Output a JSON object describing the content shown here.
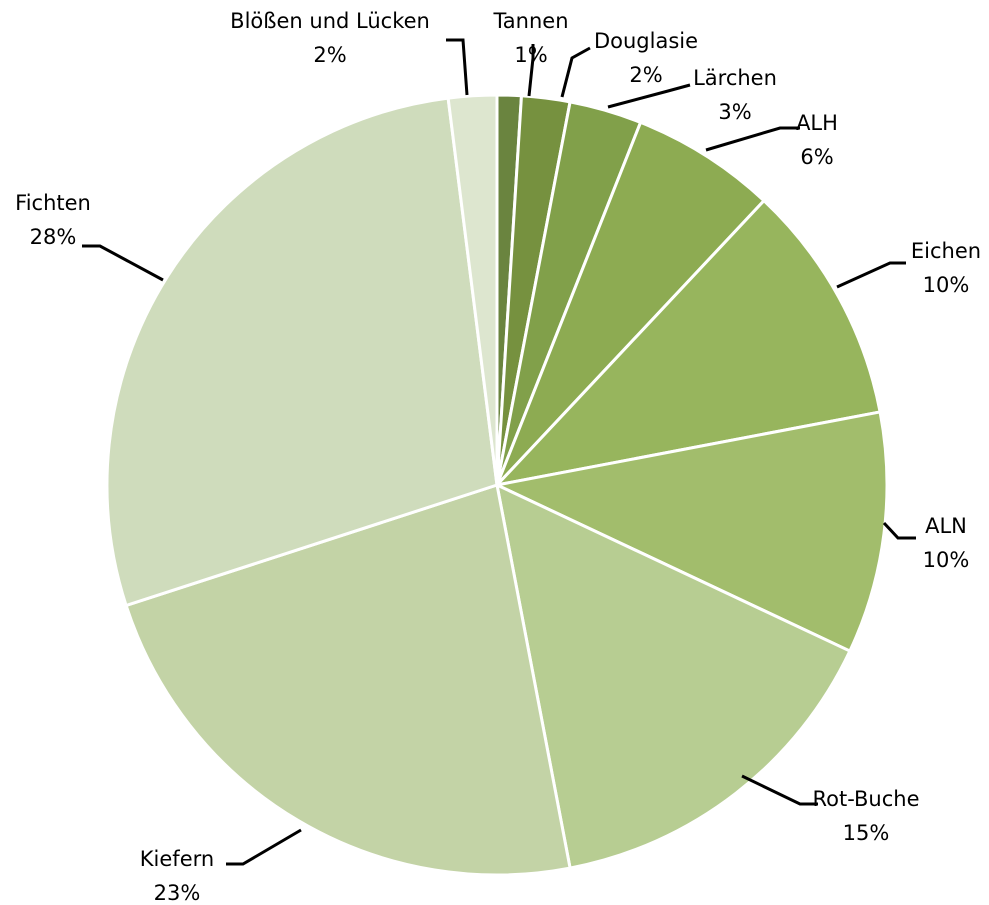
{
  "chart_data": {
    "type": "pie",
    "title": "",
    "start_angle_deg": 0,
    "direction": "clockwise",
    "slices": [
      {
        "name": "Tannen",
        "value": 1,
        "label": "1%",
        "color": "#6a843f"
      },
      {
        "name": "Douglasie",
        "value": 2,
        "label": "2%",
        "color": "#76913f"
      },
      {
        "name": "Lärchen",
        "value": 3,
        "label": "3%",
        "color": "#81a04a"
      },
      {
        "name": "ALH",
        "value": 6,
        "label": "6%",
        "color": "#8dab52"
      },
      {
        "name": "Eichen",
        "value": 10,
        "label": "10%",
        "color": "#97b55d"
      },
      {
        "name": "ALN",
        "value": 10,
        "label": "10%",
        "color": "#a2bd6c"
      },
      {
        "name": "Rot-Buche",
        "value": 15,
        "label": "15%",
        "color": "#b7cd92"
      },
      {
        "name": "Kiefern",
        "value": 23,
        "label": "23%",
        "color": "#c3d3a6"
      },
      {
        "name": "Fichten",
        "value": 28,
        "label": "28%",
        "color": "#cfdcbc"
      },
      {
        "name": "Blößen und Lücken",
        "value": 2,
        "label": "2%",
        "color": "#dde6cf"
      }
    ]
  }
}
